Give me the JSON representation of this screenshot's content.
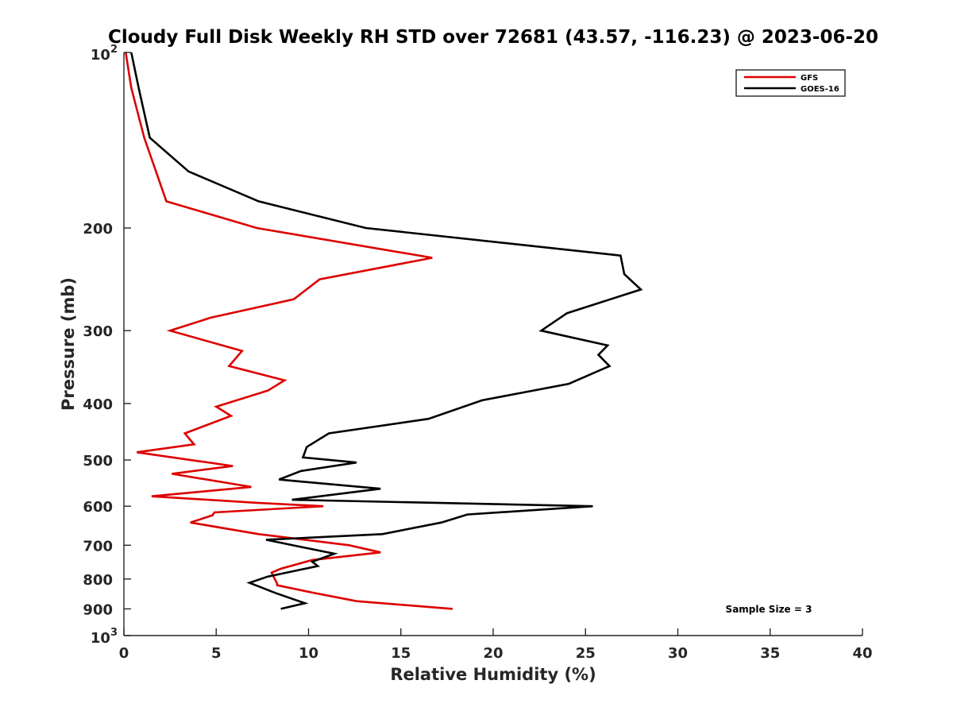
{
  "chart_data": {
    "type": "line",
    "title": "Cloudy Full Disk Weekly RH STD over 72681 (43.57, -116.23) @ 2023-06-20",
    "xlabel": "Relative Humidity (%)",
    "ylabel": "Pressure (mb)",
    "xlim": [
      0,
      40
    ],
    "ylim": [
      100,
      1000
    ],
    "y_scale": "log",
    "y_reversed": true,
    "grid": false,
    "legend_position": "top-right",
    "x_ticks": [
      "0",
      "5",
      "10",
      "15",
      "20",
      "25",
      "30",
      "35",
      "40"
    ],
    "y_ticks": [
      {
        "value": 100,
        "base": "10",
        "exp": "2"
      },
      {
        "value": 200,
        "label": "200"
      },
      {
        "value": 300,
        "label": "300"
      },
      {
        "value": 400,
        "label": "400"
      },
      {
        "value": 500,
        "label": "500"
      },
      {
        "value": 600,
        "label": "600"
      },
      {
        "value": 700,
        "label": "700"
      },
      {
        "value": 800,
        "label": "800"
      },
      {
        "value": 900,
        "label": "900"
      },
      {
        "value": 1000,
        "base": "10",
        "exp": "3"
      }
    ],
    "annotation": "Sample Size = 3",
    "series": [
      {
        "name": "GFS",
        "color": "#dd0000",
        "x": [
          0.1,
          0.4,
          1.1,
          2.3,
          7.2,
          16.7,
          10.6,
          9.2,
          4.7,
          2.5,
          6.4,
          5.7,
          8.7,
          7.8,
          5.0,
          5.8,
          3.3,
          3.8,
          0.7,
          5.9,
          2.6,
          6.9,
          1.5,
          7.2,
          10.8,
          4.9,
          4.8,
          3.6,
          7.3,
          12.2,
          13.9,
          10.2,
          8.5,
          8.0,
          8.3,
          8.3,
          10.2,
          12.6,
          17.8
        ],
        "y": [
          100,
          115,
          140,
          180,
          200,
          225,
          245,
          265,
          285,
          300,
          325,
          345,
          365,
          380,
          405,
          420,
          450,
          470,
          485,
          512,
          528,
          556,
          577,
          592,
          600,
          615,
          622,
          640,
          670,
          700,
          720,
          742,
          768,
          780,
          815,
          820,
          844,
          873,
          900
        ]
      },
      {
        "name": "GOES-16",
        "color": "#000000",
        "x": [
          0.4,
          0.8,
          1.4,
          3.5,
          7.3,
          13.1,
          26.9,
          27.1,
          28.0,
          24.0,
          22.6,
          26.2,
          25.7,
          26.3,
          24.1,
          19.4,
          16.5,
          11.1,
          9.9,
          9.7,
          12.6,
          9.6,
          8.4,
          13.9,
          9.1,
          25.4,
          18.6,
          17.2,
          14.0,
          7.7,
          9.9,
          11.4,
          10.2,
          10.5,
          7.8,
          6.8,
          8.2,
          9.8,
          8.5
        ],
        "y": [
          100,
          115,
          140,
          160,
          180,
          200,
          223,
          240,
          255,
          280,
          300,
          318,
          330,
          345,
          370,
          395,
          425,
          450,
          475,
          495,
          505,
          522,
          540,
          560,
          585,
          600,
          620,
          640,
          670,
          685,
          708,
          724,
          747,
          760,
          792,
          812,
          845,
          880,
          900
        ]
      }
    ]
  }
}
